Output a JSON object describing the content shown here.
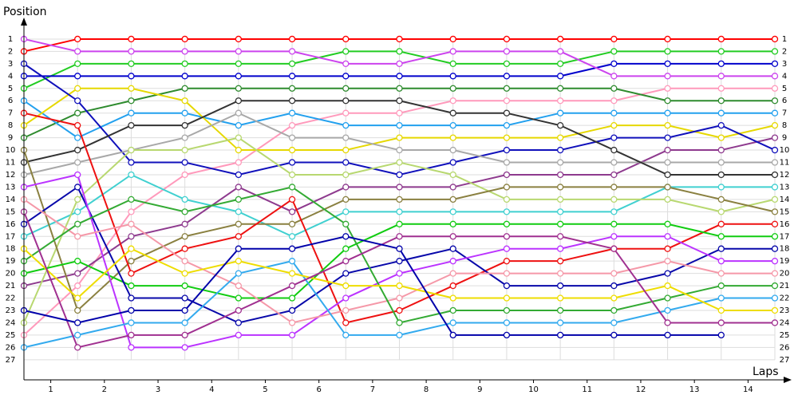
{
  "chart_data": {
    "type": "line",
    "ylabel": "Position",
    "xlabel": "Laps",
    "x": [
      0,
      1,
      2,
      3,
      4,
      5,
      6,
      7,
      8,
      9,
      10,
      11,
      12,
      13,
      14
    ],
    "xlim": [
      0,
      14
    ],
    "xticks": [
      {
        "value": 0.5,
        "label": "1"
      },
      {
        "value": 1.5,
        "label": "2"
      },
      {
        "value": 2.5,
        "label": "3"
      },
      {
        "value": 3.5,
        "label": "4"
      },
      {
        "value": 4.5,
        "label": "5"
      },
      {
        "value": 5.5,
        "label": "6"
      },
      {
        "value": 6.5,
        "label": "7"
      },
      {
        "value": 7.5,
        "label": "8"
      },
      {
        "value": 8.5,
        "label": "9"
      },
      {
        "value": 9.5,
        "label": "10"
      },
      {
        "value": 10.5,
        "label": "11"
      },
      {
        "value": 11.5,
        "label": "12"
      },
      {
        "value": 12.5,
        "label": "13"
      },
      {
        "value": 13.5,
        "label": "14"
      }
    ],
    "ylim": [
      28.5,
      0
    ],
    "yticks": [
      1,
      2,
      3,
      4,
      5,
      6,
      7,
      8,
      9,
      10,
      11,
      12,
      13,
      14,
      15,
      16,
      17,
      18,
      19,
      20,
      21,
      22,
      23,
      24,
      25,
      26,
      27
    ],
    "y2ticks": [
      1,
      2,
      3,
      4,
      5,
      6,
      7,
      8,
      9,
      10,
      11,
      12,
      13,
      14,
      15,
      16,
      17,
      18,
      19,
      20,
      21,
      22,
      23,
      24,
      25,
      26,
      27
    ],
    "grid": true,
    "series": [
      {
        "color": "#ff0000",
        "values": [
          2,
          1,
          1,
          1,
          1,
          1,
          1,
          1,
          1,
          1,
          1,
          1,
          1,
          1,
          1
        ]
      },
      {
        "color": "#22cc22",
        "values": [
          5,
          3,
          3,
          3,
          3,
          3,
          2,
          2,
          3,
          3,
          3,
          2,
          2,
          2,
          2
        ]
      },
      {
        "color": "#0000cc",
        "values": [
          4,
          4,
          4,
          4,
          4,
          4,
          4,
          4,
          4,
          4,
          4,
          3,
          3,
          3,
          3
        ]
      },
      {
        "color": "#cc44ee",
        "values": [
          1,
          2,
          2,
          2,
          2,
          2,
          3,
          3,
          2,
          2,
          2,
          4,
          4,
          4,
          4
        ]
      },
      {
        "color": "#ff99bb",
        "values": [
          25,
          21,
          15,
          12,
          11,
          8,
          7,
          7,
          6,
          6,
          6,
          6,
          5,
          5,
          5
        ]
      },
      {
        "color": "#2e8b2e",
        "values": [
          9,
          7,
          6,
          5,
          5,
          5,
          5,
          5,
          5,
          5,
          5,
          5,
          6,
          6,
          6
        ]
      },
      {
        "color": "#22a0ee",
        "values": [
          6,
          9,
          7,
          7,
          8,
          7,
          8,
          8,
          8,
          8,
          7,
          7,
          7,
          7,
          7
        ]
      },
      {
        "color": "#e6d800",
        "values": [
          8,
          5,
          5,
          6,
          10,
          10,
          10,
          9,
          9,
          9,
          9,
          8,
          8,
          9,
          8
        ]
      },
      {
        "color": "#8e3a8e",
        "values": [
          21,
          20,
          17,
          16,
          13,
          15,
          13,
          13,
          13,
          12,
          12,
          12,
          10,
          10,
          9
        ]
      },
      {
        "color": "#1010bb",
        "values": [
          3,
          6,
          11,
          11,
          12,
          11,
          11,
          12,
          11,
          10,
          10,
          9,
          9,
          8,
          10
        ]
      },
      {
        "color": "#a8a8a8",
        "values": [
          12,
          11,
          10,
          9,
          7,
          9,
          9,
          10,
          10,
          11,
          11,
          11,
          11,
          11,
          11
        ]
      },
      {
        "color": "#333333",
        "values": [
          11,
          10,
          8,
          8,
          6,
          6,
          6,
          6,
          7,
          7,
          8,
          10,
          12,
          12,
          12
        ]
      },
      {
        "color": "#40d0d0",
        "values": [
          17,
          15,
          12,
          14,
          15,
          17,
          15,
          15,
          15,
          15,
          15,
          15,
          13,
          13,
          13
        ]
      },
      {
        "color": "#b8d870",
        "values": [
          24,
          14,
          10,
          10,
          9,
          12,
          12,
          11,
          12,
          14,
          14,
          14,
          14,
          15,
          14
        ]
      },
      {
        "color": "#8a8040",
        "values": [
          10,
          23,
          19,
          17,
          16,
          16,
          14,
          14,
          14,
          13,
          13,
          13,
          13,
          14,
          15
        ]
      },
      {
        "color": "#ee1111",
        "values": [
          7,
          8,
          20,
          18,
          17,
          14,
          24,
          23,
          21,
          19,
          19,
          18,
          18,
          16,
          16
        ]
      },
      {
        "color": "#11cc11",
        "values": [
          20,
          19,
          21,
          21,
          22,
          22,
          18,
          16,
          16,
          16,
          16,
          16,
          16,
          17,
          17
        ]
      },
      {
        "color": "#0808aa",
        "values": [
          16,
          13,
          22,
          22,
          24,
          23,
          20,
          19,
          18,
          21,
          21,
          21,
          20,
          18,
          18
        ]
      },
      {
        "color": "#bb33ff",
        "values": [
          13,
          12,
          26,
          26,
          25,
          25,
          22,
          20,
          19,
          18,
          18,
          17,
          17,
          19,
          19
        ]
      },
      {
        "color": "#f598a8",
        "values": [
          14,
          17,
          16,
          19,
          21,
          24,
          23,
          22,
          20,
          20,
          20,
          20,
          19,
          20,
          20
        ]
      },
      {
        "color": "#33aa33",
        "values": [
          19,
          16,
          14,
          15,
          14,
          13,
          16,
          24,
          23,
          23,
          23,
          23,
          22,
          21,
          21
        ]
      },
      {
        "color": "#33aaee",
        "values": [
          26,
          25,
          24,
          24,
          20,
          19,
          25,
          25,
          24,
          24,
          24,
          24,
          23,
          22,
          22
        ]
      },
      {
        "color": "#eedd00",
        "values": [
          18,
          22,
          18,
          20,
          19,
          20,
          21,
          21,
          22,
          22,
          22,
          22,
          21,
          23,
          23
        ]
      },
      {
        "color": "#a03090",
        "values": [
          15,
          26,
          25,
          25,
          23,
          21,
          19,
          17,
          17,
          17,
          17,
          18,
          24,
          24,
          24
        ]
      },
      {
        "color": "#0000aa",
        "values": [
          23,
          24,
          23,
          23,
          18,
          18,
          17,
          18,
          25,
          25,
          25,
          25,
          25,
          25,
          null
        ]
      }
    ]
  }
}
